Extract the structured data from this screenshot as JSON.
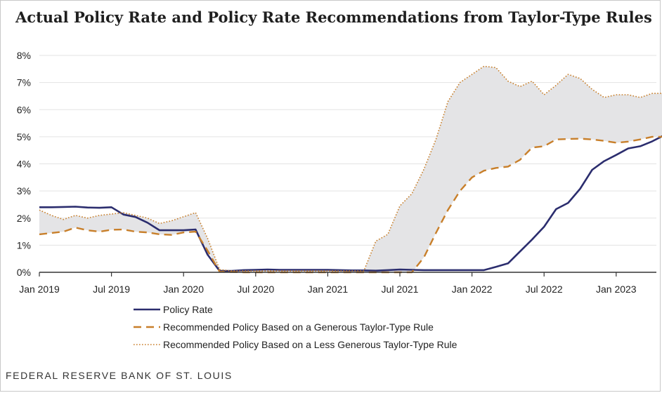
{
  "title": "Actual Policy Rate and Policy Rate Recommendations from Taylor-Type Rules",
  "source": "FEDERAL RESERVE BANK OF ST. LOUIS",
  "chart_data": {
    "type": "line",
    "title": "Actual Policy Rate and Policy Rate Recommendations from Taylor-Type Rules",
    "ylim": [
      0,
      8
    ],
    "yticks": [
      "0%",
      "1%",
      "2%",
      "3%",
      "4%",
      "5%",
      "6%",
      "7%",
      "8%"
    ],
    "xticks": [
      "Jan 2019",
      "Jul 2019",
      "Jan 2020",
      "Jul 2020",
      "Jan 2021",
      "Jul 2021",
      "Jan 2022",
      "Jul 2022",
      "Jan 2023"
    ],
    "grid": "horizontal",
    "legend_position": "bottom",
    "shaded_band": "between generous and less generous rule recommendations",
    "x": [
      "2019-01",
      "2019-02",
      "2019-03",
      "2019-04",
      "2019-05",
      "2019-06",
      "2019-07",
      "2019-08",
      "2019-09",
      "2019-10",
      "2019-11",
      "2019-12",
      "2020-01",
      "2020-02",
      "2020-03",
      "2020-04",
      "2020-05",
      "2020-06",
      "2020-07",
      "2020-08",
      "2020-09",
      "2020-10",
      "2020-11",
      "2020-12",
      "2021-01",
      "2021-02",
      "2021-03",
      "2021-04",
      "2021-05",
      "2021-06",
      "2021-07",
      "2021-08",
      "2021-09",
      "2021-10",
      "2021-11",
      "2021-12",
      "2022-01",
      "2022-02",
      "2022-03",
      "2022-04",
      "2022-05",
      "2022-06",
      "2022-07",
      "2022-08",
      "2022-09",
      "2022-10",
      "2022-11",
      "2022-12",
      "2023-01",
      "2023-02",
      "2023-03",
      "2023-04",
      "2023-05",
      "2023-06"
    ],
    "series": [
      {
        "name": "Policy Rate",
        "color": "#2b2d6e",
        "style": "solid",
        "values": [
          2.4,
          2.4,
          2.41,
          2.42,
          2.39,
          2.38,
          2.4,
          2.13,
          2.04,
          1.83,
          1.55,
          1.55,
          1.55,
          1.58,
          0.65,
          0.05,
          0.05,
          0.08,
          0.09,
          0.1,
          0.09,
          0.09,
          0.09,
          0.09,
          0.09,
          0.08,
          0.07,
          0.07,
          0.06,
          0.08,
          0.1,
          0.09,
          0.08,
          0.08,
          0.08,
          0.08,
          0.08,
          0.08,
          0.2,
          0.33,
          0.77,
          1.21,
          1.68,
          2.33,
          2.56,
          3.08,
          3.78,
          4.1,
          4.33,
          4.57,
          4.65,
          4.83,
          5.06,
          5.08
        ]
      },
      {
        "name": "Recommended Policy Based on a Generous Taylor-Type Rule",
        "color": "#c87f2a",
        "style": "dashed",
        "values": [
          1.4,
          1.45,
          1.5,
          1.65,
          1.55,
          1.5,
          1.57,
          1.58,
          1.5,
          1.47,
          1.4,
          1.38,
          1.47,
          1.5,
          0.8,
          0.02,
          0.01,
          0.0,
          0.0,
          0.0,
          0.0,
          0.0,
          0.0,
          0.0,
          0.0,
          0.0,
          0.0,
          0.0,
          0.0,
          0.0,
          0.0,
          0.0,
          0.55,
          1.45,
          2.3,
          3.0,
          3.5,
          3.75,
          3.85,
          3.9,
          4.15,
          4.6,
          4.65,
          4.9,
          4.92,
          4.93,
          4.9,
          4.85,
          4.78,
          4.82,
          4.9,
          5.0,
          5.0,
          5.0
        ]
      },
      {
        "name": "Recommended Policy Based on a Less Generous Taylor-Type Rule",
        "color": "#c87f2a",
        "style": "dotted",
        "values": [
          2.3,
          2.1,
          1.95,
          2.1,
          2.0,
          2.1,
          2.15,
          2.2,
          2.1,
          2.0,
          1.8,
          1.9,
          2.05,
          2.2,
          1.25,
          0.1,
          0.05,
          0.05,
          0.05,
          0.05,
          0.05,
          0.05,
          0.05,
          0.05,
          0.05,
          0.05,
          0.05,
          0.05,
          1.15,
          1.4,
          2.45,
          2.9,
          3.8,
          4.9,
          6.3,
          7.0,
          7.3,
          7.6,
          7.55,
          7.05,
          6.85,
          7.05,
          6.55,
          6.9,
          7.3,
          7.15,
          6.75,
          6.45,
          6.55,
          6.55,
          6.45,
          6.6,
          6.6,
          6.6
        ]
      }
    ]
  }
}
